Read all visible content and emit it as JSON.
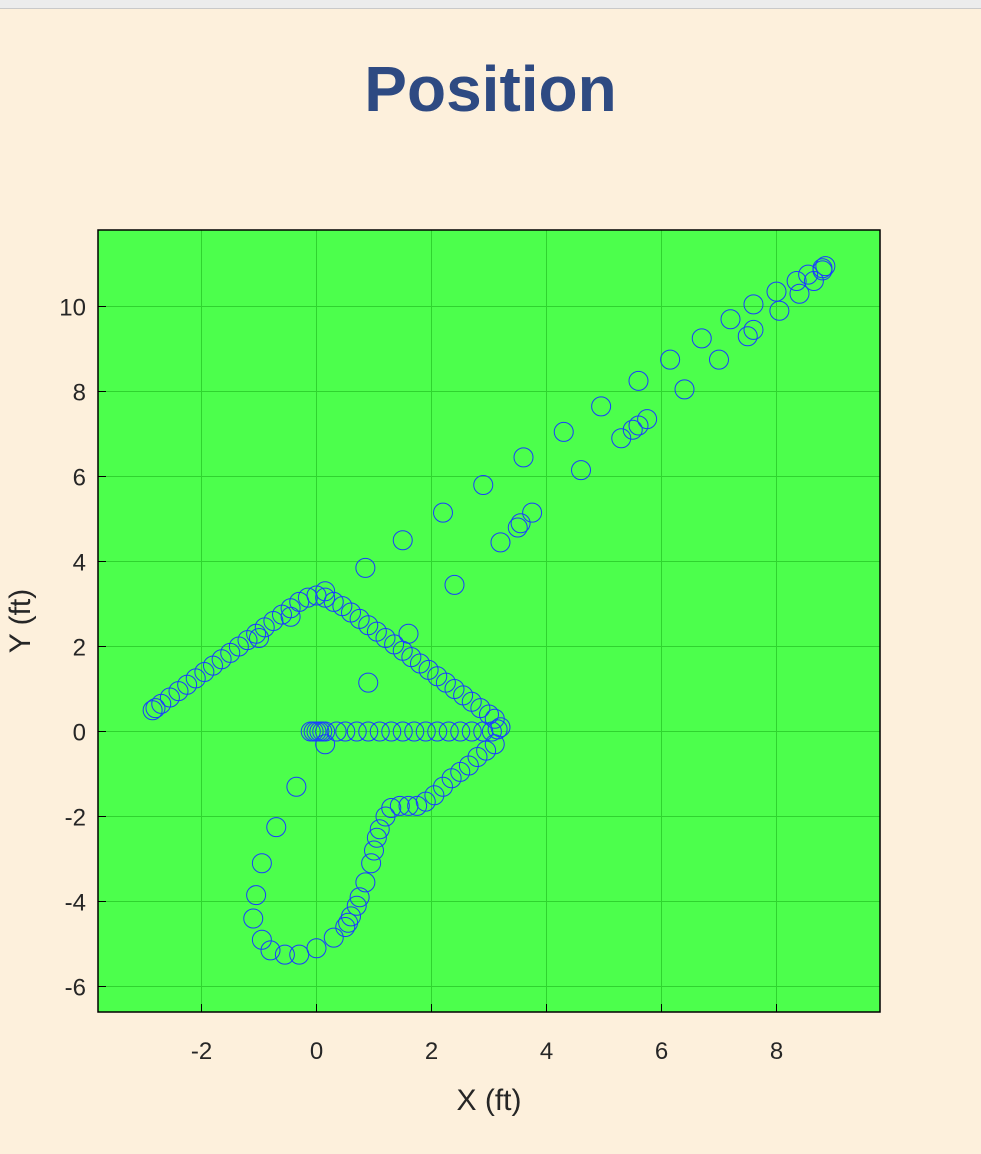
{
  "chart_data": {
    "type": "scatter",
    "title": "Position",
    "xlabel": "X (ft)",
    "ylabel": "Y (ft)",
    "xlim": [
      -3.8,
      9.8
    ],
    "ylim": [
      -6.6,
      11.8
    ],
    "xticks": [
      -2,
      0,
      2,
      4,
      6,
      8
    ],
    "yticks": [
      -6,
      -4,
      -2,
      0,
      2,
      4,
      6,
      8,
      10
    ],
    "xtick_labels": [
      "-2",
      "0",
      "2",
      "4",
      "6",
      "8"
    ],
    "ytick_labels": [
      "-6",
      "-4",
      "-2",
      "0",
      "2",
      "4",
      "6",
      "8",
      "10"
    ],
    "grid": true,
    "plot_background": "#4cff4c",
    "marker": "open-circle",
    "series": [
      {
        "values": [
          [
            0.0,
            0.0
          ],
          [
            -0.1,
            0.0
          ],
          [
            -0.05,
            0.0
          ],
          [
            0.05,
            0.0
          ],
          [
            0.1,
            0.0
          ],
          [
            0.15,
            0.0
          ],
          [
            0.35,
            0.0
          ],
          [
            0.5,
            0.0
          ],
          [
            0.7,
            0.0
          ],
          [
            0.9,
            0.0
          ],
          [
            1.1,
            0.0
          ],
          [
            1.3,
            0.0
          ],
          [
            1.5,
            0.0
          ],
          [
            1.7,
            0.0
          ],
          [
            1.9,
            0.0
          ],
          [
            2.1,
            0.0
          ],
          [
            2.3,
            0.0
          ],
          [
            2.5,
            0.0
          ],
          [
            2.7,
            0.0
          ],
          [
            2.9,
            0.0
          ],
          [
            3.05,
            0.0
          ],
          [
            3.15,
            0.05
          ],
          [
            3.2,
            0.1
          ],
          [
            3.1,
            0.3
          ],
          [
            3.0,
            0.4
          ],
          [
            2.85,
            0.55
          ],
          [
            2.7,
            0.7
          ],
          [
            2.55,
            0.85
          ],
          [
            2.4,
            1.0
          ],
          [
            2.25,
            1.15
          ],
          [
            2.1,
            1.3
          ],
          [
            1.95,
            1.45
          ],
          [
            1.8,
            1.6
          ],
          [
            1.65,
            1.75
          ],
          [
            1.5,
            1.9
          ],
          [
            1.35,
            2.05
          ],
          [
            1.2,
            2.2
          ],
          [
            1.05,
            2.35
          ],
          [
            0.9,
            2.5
          ],
          [
            0.75,
            2.65
          ],
          [
            0.6,
            2.8
          ],
          [
            0.45,
            2.95
          ],
          [
            0.3,
            3.05
          ],
          [
            0.15,
            3.15
          ],
          [
            0.0,
            3.2
          ],
          [
            -0.15,
            3.15
          ],
          [
            -0.3,
            3.05
          ],
          [
            -0.45,
            2.9
          ],
          [
            -0.6,
            2.75
          ],
          [
            -0.75,
            2.6
          ],
          [
            -0.9,
            2.45
          ],
          [
            -1.05,
            2.3
          ],
          [
            -1.2,
            2.15
          ],
          [
            -1.35,
            2.0
          ],
          [
            -1.5,
            1.85
          ],
          [
            -1.65,
            1.7
          ],
          [
            -1.8,
            1.55
          ],
          [
            -1.95,
            1.4
          ],
          [
            -2.1,
            1.25
          ],
          [
            -2.25,
            1.1
          ],
          [
            -2.4,
            0.95
          ],
          [
            -2.55,
            0.8
          ],
          [
            -2.7,
            0.65
          ],
          [
            -2.8,
            0.55
          ],
          [
            -2.85,
            0.5
          ],
          [
            0.15,
            3.3
          ],
          [
            -0.45,
            2.7
          ],
          [
            -1.0,
            2.2
          ],
          [
            1.6,
            2.3
          ],
          [
            0.9,
            1.15
          ],
          [
            0.15,
            -0.3
          ],
          [
            3.1,
            -0.3
          ],
          [
            2.95,
            -0.45
          ],
          [
            2.8,
            -0.6
          ],
          [
            2.65,
            -0.8
          ],
          [
            2.5,
            -0.95
          ],
          [
            2.35,
            -1.1
          ],
          [
            2.2,
            -1.3
          ],
          [
            2.05,
            -1.5
          ],
          [
            1.9,
            -1.65
          ],
          [
            1.75,
            -1.75
          ],
          [
            1.6,
            -1.75
          ],
          [
            1.45,
            -1.75
          ],
          [
            1.3,
            -1.8
          ],
          [
            1.2,
            -2.0
          ],
          [
            1.1,
            -2.3
          ],
          [
            1.05,
            -2.5
          ],
          [
            1.0,
            -2.8
          ],
          [
            0.95,
            -3.1
          ],
          [
            0.85,
            -3.55
          ],
          [
            0.75,
            -3.9
          ],
          [
            0.7,
            -4.1
          ],
          [
            0.6,
            -4.35
          ],
          [
            0.55,
            -4.5
          ],
          [
            0.5,
            -4.6
          ],
          [
            0.3,
            -4.85
          ],
          [
            0.0,
            -5.1
          ],
          [
            -0.3,
            -5.25
          ],
          [
            -0.55,
            -5.25
          ],
          [
            -0.8,
            -5.15
          ],
          [
            -0.95,
            -4.9
          ],
          [
            -1.1,
            -4.4
          ],
          [
            -1.05,
            -3.85
          ],
          [
            -0.95,
            -3.1
          ],
          [
            -0.7,
            -2.25
          ],
          [
            -0.35,
            -1.3
          ],
          [
            0.85,
            3.85
          ],
          [
            1.5,
            4.5
          ],
          [
            2.2,
            5.15
          ],
          [
            2.9,
            5.8
          ],
          [
            3.6,
            6.45
          ],
          [
            4.3,
            7.05
          ],
          [
            4.95,
            7.65
          ],
          [
            5.6,
            8.25
          ],
          [
            6.15,
            8.75
          ],
          [
            6.7,
            9.25
          ],
          [
            7.2,
            9.7
          ],
          [
            7.6,
            10.05
          ],
          [
            8.0,
            10.35
          ],
          [
            8.35,
            10.6
          ],
          [
            8.55,
            10.75
          ],
          [
            8.8,
            10.9
          ],
          [
            8.85,
            10.95
          ],
          [
            2.4,
            3.45
          ],
          [
            3.2,
            4.45
          ],
          [
            3.5,
            4.8
          ],
          [
            3.55,
            4.9
          ],
          [
            3.75,
            5.15
          ],
          [
            4.6,
            6.15
          ],
          [
            5.3,
            6.9
          ],
          [
            5.5,
            7.1
          ],
          [
            5.6,
            7.2
          ],
          [
            5.75,
            7.35
          ],
          [
            6.4,
            8.05
          ],
          [
            7.0,
            8.75
          ],
          [
            7.5,
            9.3
          ],
          [
            7.6,
            9.45
          ],
          [
            8.05,
            9.9
          ],
          [
            8.4,
            10.3
          ],
          [
            8.65,
            10.6
          ],
          [
            8.8,
            10.85
          ]
        ]
      }
    ]
  }
}
